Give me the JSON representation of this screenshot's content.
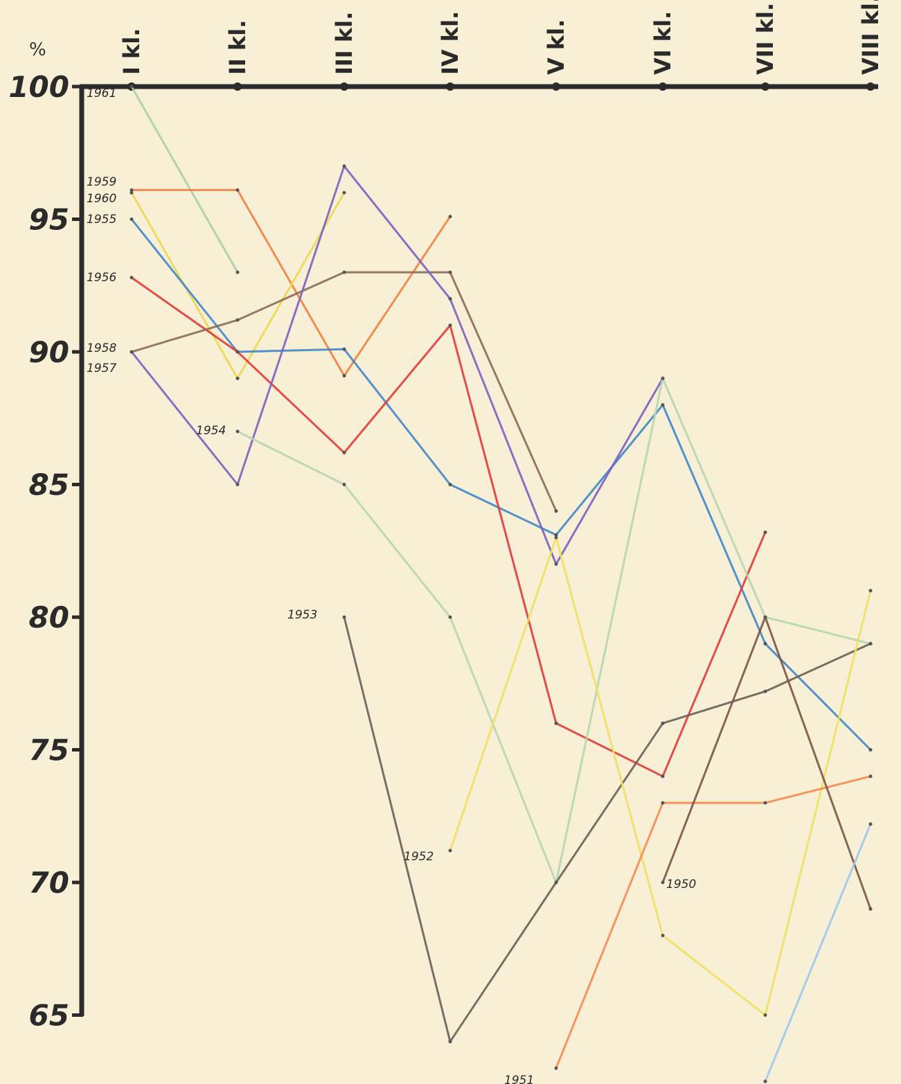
{
  "chart_data": {
    "type": "line",
    "y_label": "%",
    "categories": [
      "I kl.",
      "II kl.",
      "III kl.",
      "IV kl.",
      "V kl.",
      "VI kl.",
      "VII kl.",
      "VIII kl."
    ],
    "ylim": [
      100,
      62
    ],
    "yticks": [
      100,
      95,
      90,
      85,
      80,
      75,
      70,
      65
    ],
    "series": [
      {
        "name": "1961",
        "color": "#a9cfa6",
        "values": [
          100,
          93,
          null,
          null,
          null,
          null,
          null,
          null
        ]
      },
      {
        "name": "1959",
        "color": "#f08040",
        "values": [
          96.1,
          96.1,
          89.1,
          95.1,
          null,
          null,
          null,
          null
        ]
      },
      {
        "name": "1960",
        "color": "#ecd850",
        "values": [
          96,
          89,
          96,
          null,
          null,
          null,
          null,
          null
        ]
      },
      {
        "name": "1955",
        "color": "#3f86c8",
        "values": [
          95,
          90,
          90.1,
          85,
          83.1,
          88,
          79,
          75
        ]
      },
      {
        "name": "1956",
        "color": "#e03a3a",
        "values": [
          92.8,
          90,
          86.2,
          91,
          76,
          74,
          83.2,
          null
        ]
      },
      {
        "name": "1958",
        "color": "#8a6a5a",
        "values": [
          90,
          91.2,
          93,
          93,
          84,
          null,
          null,
          null
        ]
      },
      {
        "name": "1957",
        "color": "#7a62c0",
        "values": [
          90,
          85,
          97,
          92,
          82,
          89,
          null,
          null
        ]
      },
      {
        "name": "1954",
        "color": "#b5d6b0",
        "values": [
          null,
          87,
          85,
          80,
          70,
          89,
          80,
          79
        ]
      },
      {
        "name": "1953",
        "color": "#6e5e58",
        "values": [
          null,
          null,
          80,
          64,
          70,
          76,
          77.2,
          79
        ]
      },
      {
        "name": "1952",
        "color": "#f0e060",
        "values": [
          null,
          null,
          null,
          71.2,
          83,
          68,
          65,
          81
        ]
      },
      {
        "name": "1951",
        "color": "#f58a50",
        "values": [
          null,
          null,
          null,
          null,
          63,
          73,
          73,
          74
        ]
      },
      {
        "name": "1950",
        "color": "#7a5548",
        "values": [
          null,
          null,
          null,
          null,
          null,
          70,
          80,
          69
        ]
      },
      {
        "color": "#9cc8ea",
        "values": [
          null,
          null,
          null,
          null,
          null,
          null,
          62.5,
          72.2
        ]
      }
    ]
  }
}
